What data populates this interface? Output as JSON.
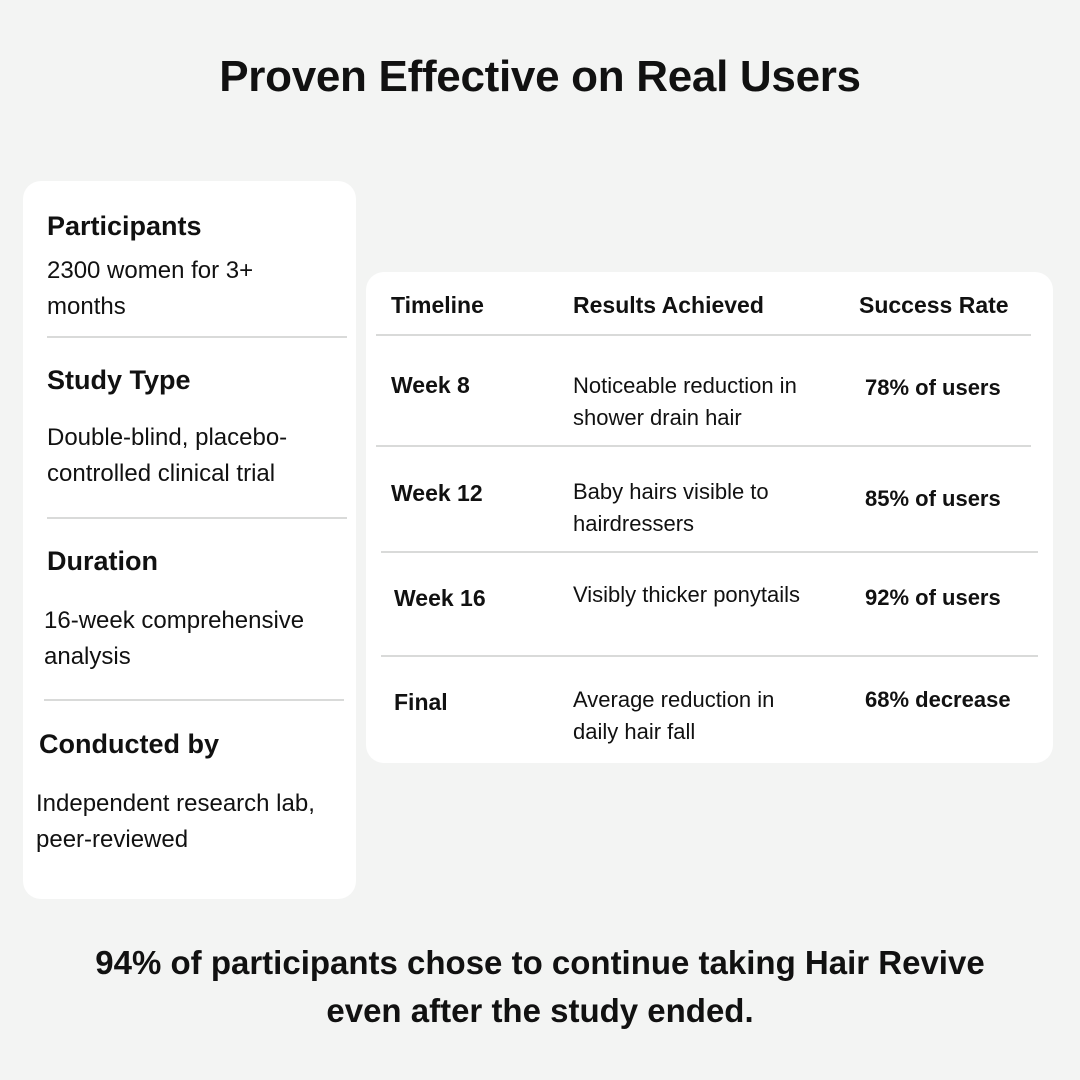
{
  "title": "Proven Effective on Real Users",
  "study": {
    "participants_label": "Participants",
    "participants_value": "2300 women for 3+ months",
    "type_label": "Study Type",
    "type_value": "Double-blind, placebo-controlled clinical trial",
    "duration_label": "Duration",
    "duration_value": "16-week comprehensive analysis",
    "conducted_label": "Conducted by",
    "conducted_value": "Independent research lab, peer-reviewed"
  },
  "results": {
    "headers": [
      "Timeline",
      "Results Achieved",
      "Success Rate"
    ],
    "rows": [
      {
        "timeline": "Week 8",
        "result": "Noticeable reduction in shower drain hair",
        "rate": "78% of users"
      },
      {
        "timeline": "Week 12",
        "result": "Baby hairs visible to hairdressers",
        "rate": "85% of users"
      },
      {
        "timeline": "Week 16",
        "result": "Visibly thicker ponytails",
        "rate": "92% of users"
      },
      {
        "timeline": "Final",
        "result": "Average reduction in daily hair fall",
        "rate": "68% decrease"
      }
    ]
  },
  "footer": "94% of participants chose to continue taking Hair Revive even after the study ended."
}
